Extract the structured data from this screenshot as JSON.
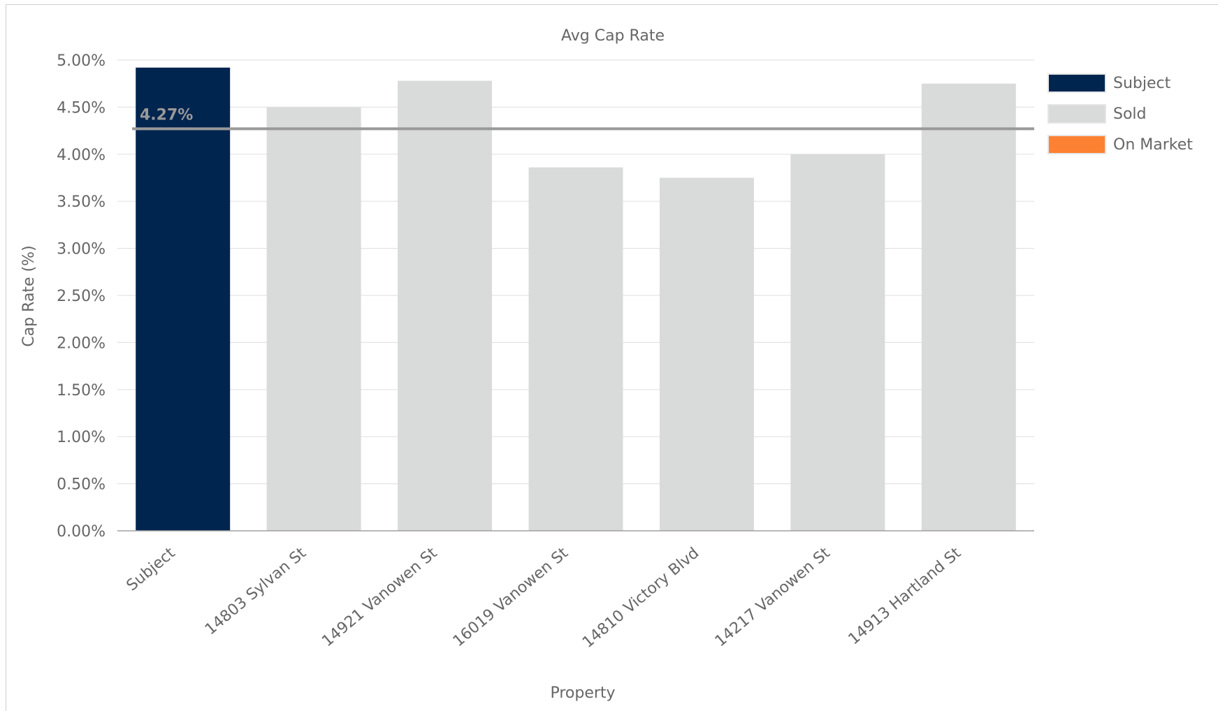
{
  "chart_data": {
    "type": "bar",
    "title": "Avg Cap Rate",
    "xlabel": "Property",
    "ylabel": "Cap Rate (%)",
    "ylim": [
      0,
      5
    ],
    "yticks": [
      "0.00%",
      "0.50%",
      "1.00%",
      "1.50%",
      "2.00%",
      "2.50%",
      "3.00%",
      "3.50%",
      "4.00%",
      "4.50%",
      "5.00%"
    ],
    "grid": true,
    "legend_position": "right",
    "categories": [
      "Subject",
      "14803 Sylvan St",
      "14921 Vanowen St",
      "16019 Vanowen St",
      "14810 Victory Blvd",
      "14217 Vanowen St",
      "14913 Hartland St"
    ],
    "values": [
      4.92,
      4.5,
      4.78,
      3.86,
      3.75,
      4.0,
      4.75
    ],
    "status": [
      "Subject",
      "Sold",
      "Sold",
      "Sold",
      "Sold",
      "Sold",
      "Sold"
    ],
    "average": {
      "value": 4.27,
      "label": "4.27%",
      "color": "#999999"
    },
    "legend": [
      {
        "name": "Subject",
        "color": "#00254f"
      },
      {
        "name": "Sold",
        "color": "#d9dada"
      },
      {
        "name": "On Market",
        "color": "#fd8132"
      }
    ]
  }
}
